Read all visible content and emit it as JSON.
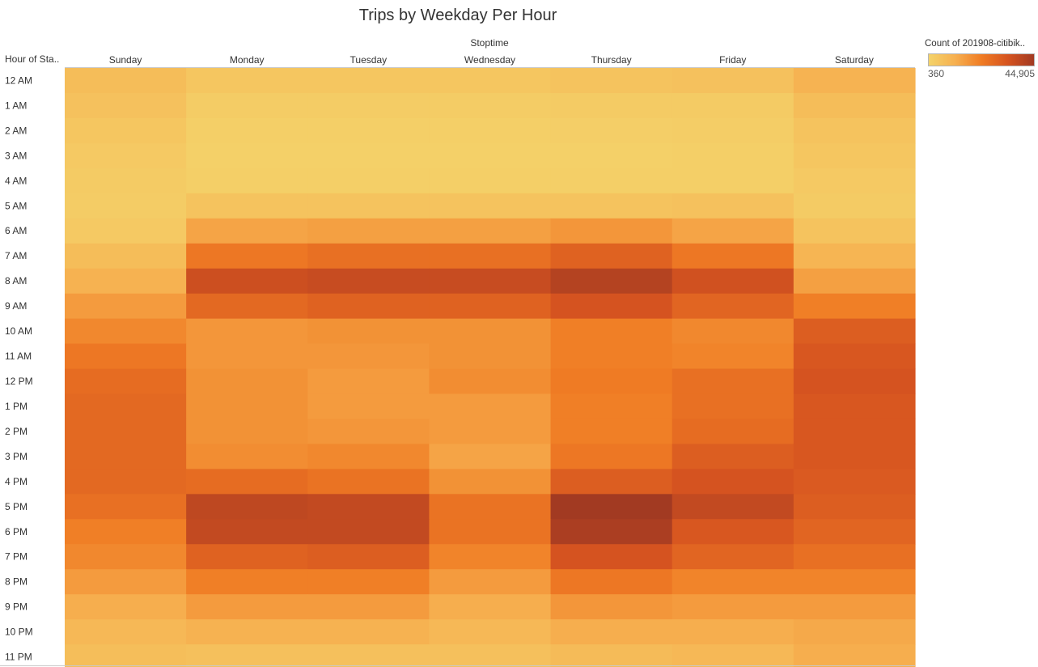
{
  "title": "Trips by Weekday Per Hour",
  "column_header": "Stoptime",
  "row_header": "Hour of Sta..",
  "legend": {
    "title": "Count of 201908-citibik..",
    "min_label": "360",
    "max_label": "44,905",
    "min_color": "#f4d36a",
    "max_color": "#a23a22"
  },
  "chart_data": {
    "type": "heatmap",
    "title": "Trips by Weekday Per Hour",
    "x_header": "Stoptime",
    "y_header": "Hour of Sta..",
    "columns": [
      "Sunday",
      "Monday",
      "Tuesday",
      "Wednesday",
      "Thursday",
      "Friday",
      "Saturday"
    ],
    "rows": [
      "12 AM",
      "1 AM",
      "2 AM",
      "3 AM",
      "4 AM",
      "5 AM",
      "6 AM",
      "7 AM",
      "8 AM",
      "9 AM",
      "10 AM",
      "11 AM",
      "12 PM",
      "1 PM",
      "2 PM",
      "3 PM",
      "4 PM",
      "5 PM",
      "6 PM",
      "7 PM",
      "8 PM",
      "9 PM",
      "10 PM",
      "11 PM"
    ],
    "values": [
      [
        7500,
        4500,
        4500,
        4500,
        5500,
        6000,
        10500
      ],
      [
        6000,
        2500,
        2500,
        2500,
        3000,
        3000,
        7500
      ],
      [
        4500,
        1500,
        1500,
        1500,
        1800,
        2200,
        5500
      ],
      [
        3500,
        1200,
        1200,
        1200,
        1400,
        1600,
        4500
      ],
      [
        3000,
        1500,
        1500,
        1500,
        1500,
        1700,
        3500
      ],
      [
        2500,
        5500,
        5500,
        5500,
        5500,
        6000,
        3000
      ],
      [
        3500,
        14000,
        15000,
        15000,
        17000,
        14000,
        5500
      ],
      [
        7500,
        24000,
        26000,
        26000,
        30000,
        24000,
        10000
      ],
      [
        11000,
        36000,
        37000,
        37000,
        41000,
        35000,
        15000
      ],
      [
        16000,
        28000,
        30000,
        30000,
        34000,
        29000,
        22000
      ],
      [
        20000,
        17000,
        18000,
        18000,
        22000,
        20000,
        31000
      ],
      [
        24000,
        17000,
        17000,
        18000,
        22000,
        21000,
        33000
      ],
      [
        27000,
        18000,
        16000,
        19000,
        23000,
        26000,
        34000
      ],
      [
        28000,
        18000,
        16000,
        16000,
        22000,
        26000,
        33000
      ],
      [
        28000,
        18000,
        17000,
        16000,
        22000,
        27000,
        33000
      ],
      [
        28000,
        19000,
        20000,
        14000,
        24000,
        31000,
        33000
      ],
      [
        28000,
        27000,
        25000,
        18000,
        31000,
        34000,
        32000
      ],
      [
        26000,
        39000,
        38000,
        25000,
        44905,
        38000,
        31000
      ],
      [
        22000,
        38000,
        38000,
        25000,
        43000,
        33000,
        29000
      ],
      [
        20000,
        30000,
        31000,
        21000,
        34000,
        29000,
        26000
      ],
      [
        16000,
        22000,
        22000,
        16000,
        24000,
        21000,
        21000
      ],
      [
        12000,
        16000,
        16000,
        12000,
        17000,
        16000,
        16000
      ],
      [
        9000,
        11000,
        11000,
        9000,
        12000,
        12000,
        13000
      ],
      [
        7000,
        6500,
        6500,
        6500,
        8000,
        9000,
        12000
      ]
    ],
    "color_range": [
      360,
      44905
    ]
  }
}
